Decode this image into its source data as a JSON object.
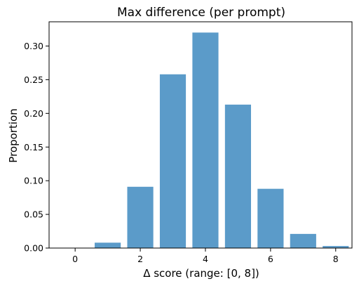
{
  "chart_data": {
    "type": "bar",
    "title": "Max difference (per prompt)",
    "xlabel": "Δ score (range: [0, 8])",
    "ylabel": "Proportion",
    "categories": [
      0,
      1,
      2,
      3,
      4,
      5,
      6,
      7,
      8
    ],
    "values": [
      0.0,
      0.008,
      0.091,
      0.258,
      0.32,
      0.213,
      0.088,
      0.021,
      0.003
    ],
    "xticks": [
      "0",
      "2",
      "4",
      "6",
      "8"
    ],
    "yticks": [
      "0.00",
      "0.05",
      "0.10",
      "0.15",
      "0.20",
      "0.25",
      "0.30"
    ],
    "xlim": [
      -0.8,
      8.5
    ],
    "ylim": [
      0,
      0.336
    ],
    "bar_color": "#5b9bc9",
    "grid": false,
    "legend": "none"
  }
}
